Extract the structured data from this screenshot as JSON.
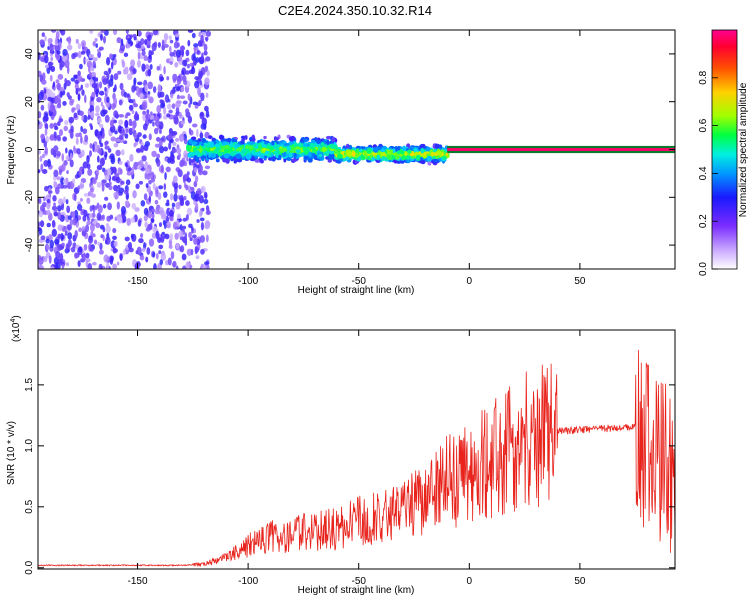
{
  "title": "C2E4.2024.350.10.32.R14",
  "chart_data": [
    {
      "type": "heatmap",
      "xlabel": "Height of straight line (km)",
      "ylabel": "Frequency (Hz)",
      "xlim": [
        -195,
        93
      ],
      "ylim": [
        -50,
        50
      ],
      "xticks": [
        -150,
        -100,
        -50,
        0,
        50
      ],
      "yticks": [
        -40,
        -20,
        0,
        20,
        40
      ],
      "colorbar": {
        "label": "Normalized spectral amplitude",
        "range": [
          0,
          1
        ],
        "ticks": [
          "0.0",
          "0.2",
          "0.4",
          "0.6",
          "0.8"
        ],
        "colormap": [
          "#ffffff",
          "#9c6cff",
          "#3b1cff",
          "#0066ff",
          "#00d8ff",
          "#00ff66",
          "#9cff00",
          "#ffd800",
          "#ff6a00",
          "#ff0040",
          "#ff0090"
        ]
      },
      "regions": [
        {
          "x_from": -195,
          "x_to": -118,
          "pattern": "scattered",
          "freq_range": [
            -50,
            50
          ],
          "amplitude": 0.15
        },
        {
          "x_from": -127,
          "x_to": -60,
          "pattern": "band",
          "freq_center": 0,
          "half_width": 6,
          "amplitude": 0.45
        },
        {
          "x_from": -60,
          "x_to": -10,
          "pattern": "band",
          "freq_center": -2,
          "half_width": 4,
          "amplitude": 0.55
        },
        {
          "x_from": -10,
          "x_to": 93,
          "pattern": "line",
          "freq_center": 0,
          "half_width": 1.5,
          "amplitude": 0.95
        }
      ]
    },
    {
      "type": "line",
      "xlabel": "Height of straight line (km)",
      "ylabel": "SNR (10 * v/v)",
      "multiplier": "(x10",
      "multiplier_exp": "4",
      "xlim": [
        -195,
        93
      ],
      "ylim": [
        -0.01,
        1.95
      ],
      "xticks": [
        -150,
        -100,
        -50,
        0,
        50
      ],
      "yticks": [
        "0.0",
        "0.5",
        "1.0",
        "1.5"
      ],
      "color": "#e8231c",
      "envelope_x": [
        -195,
        -130,
        -120,
        -110,
        -100,
        -90,
        -80,
        -70,
        -60,
        -50,
        -40,
        -30,
        -20,
        -10,
        0,
        10,
        20,
        30,
        40,
        50,
        60,
        70,
        75,
        80,
        85,
        93
      ],
      "envelope_y": [
        0.02,
        0.02,
        0.03,
        0.08,
        0.18,
        0.25,
        0.28,
        0.3,
        0.32,
        0.38,
        0.42,
        0.45,
        0.6,
        0.7,
        0.78,
        0.88,
        1.0,
        1.1,
        1.12,
        1.13,
        1.14,
        1.15,
        1.15,
        1.0,
        0.85,
        0.8
      ]
    }
  ]
}
